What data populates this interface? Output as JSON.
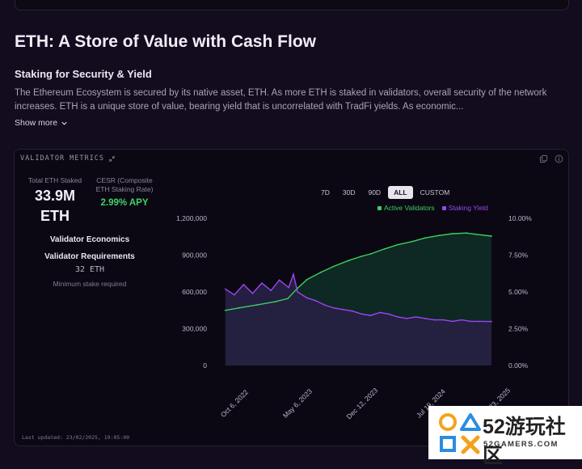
{
  "section": {
    "title": "ETH: A Store of Value with Cash Flow",
    "subtitle": "Staking for Security & Yield",
    "body": "The Ethereum Ecosystem is secured by its native asset, ETH. As more ETH is staked in validators, overall security of the network increases. ETH is a unique store of value, bearing yield that is uncorrelated with TradFi yields. As economic...",
    "show_more": "Show more"
  },
  "card": {
    "title": "VALIDATOR METRICS",
    "header_icons": [
      "copy-icon",
      "info-icon"
    ],
    "metrics": {
      "total_staked_label": "Total ETH Staked",
      "total_staked_value": "33.9M",
      "total_staked_unit": "ETH",
      "cesr_label_line1": "CESR (Composite",
      "cesr_label_line2": "ETH Staking Rate)",
      "cesr_value": "2.99% APY"
    },
    "economics_label": "Validator Economics",
    "requirements_label": "Validator Requirements",
    "requirement_value": "32 ETH",
    "requirement_note": "Minimum stake required",
    "ranges": [
      "7D",
      "30D",
      "90D",
      "ALL",
      "CUSTOM"
    ],
    "active_range": "ALL",
    "last_updated": "Last updated: 23/02/2025, 19:05:00"
  },
  "colors": {
    "validators": "#3ccf5f",
    "yield": "#9b45f2",
    "accent_green": "#3fd26a"
  },
  "chart_data": {
    "type": "line",
    "x_ticks": [
      "Oct 6, 2022",
      "May 6, 2023",
      "Dec 12, 2023",
      "Jul 19, 2024",
      "Feb 23, 2025"
    ],
    "y_left_ticks": [
      "0",
      "300,000",
      "600,000",
      "900,000",
      "1,200,000"
    ],
    "y_right_ticks": [
      "0.00%",
      "2.50%",
      "5.00%",
      "7.50%",
      "10.00%"
    ],
    "ylim_left": [
      0,
      1200000
    ],
    "ylim_right": [
      0,
      10
    ],
    "legend_position": "top-right",
    "grid": false,
    "series": [
      {
        "name": "Active Validators",
        "axis": "left",
        "x": [
          "2022-09-15",
          "2022-11-01",
          "2023-01-01",
          "2023-03-01",
          "2023-04-12",
          "2023-05-15",
          "2023-06-15",
          "2023-08-01",
          "2023-09-15",
          "2023-11-01",
          "2023-12-15",
          "2024-01-15",
          "2024-03-01",
          "2024-04-15",
          "2024-06-01",
          "2024-07-15",
          "2024-09-01",
          "2024-10-15",
          "2024-12-01",
          "2025-01-01",
          "2025-02-23"
        ],
        "values": [
          450000,
          470000,
          495000,
          520000,
          545000,
          630000,
          700000,
          760000,
          810000,
          855000,
          890000,
          910000,
          950000,
          985000,
          1010000,
          1040000,
          1060000,
          1075000,
          1080000,
          1070000,
          1055000
        ]
      },
      {
        "name": "Staking Yield",
        "axis": "right",
        "x": [
          "2022-09-15",
          "2022-10-15",
          "2022-11-15",
          "2022-12-15",
          "2023-01-15",
          "2023-02-15",
          "2023-03-15",
          "2023-04-15",
          "2023-05-01",
          "2023-05-15",
          "2023-06-15",
          "2023-07-15",
          "2023-08-15",
          "2023-09-15",
          "2023-10-15",
          "2023-11-15",
          "2023-12-15",
          "2024-01-15",
          "2024-02-15",
          "2024-03-15",
          "2024-04-15",
          "2024-05-15",
          "2024-06-15",
          "2024-07-15",
          "2024-08-15",
          "2024-09-15",
          "2024-10-15",
          "2024-11-15",
          "2024-12-15",
          "2025-01-15",
          "2025-02-23"
        ],
        "values": [
          5.2,
          4.8,
          5.5,
          4.9,
          5.6,
          5.1,
          5.8,
          5.3,
          6.2,
          5.0,
          4.6,
          4.4,
          4.1,
          3.9,
          3.8,
          3.7,
          3.5,
          3.4,
          3.6,
          3.5,
          3.3,
          3.2,
          3.3,
          3.2,
          3.1,
          3.1,
          3.0,
          3.1,
          3.0,
          3.0,
          2.99
        ]
      }
    ]
  }
}
